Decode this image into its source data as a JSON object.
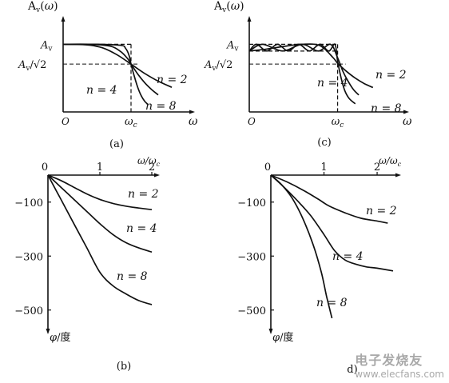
{
  "chart_data": [
    {
      "id": "a",
      "type": "line",
      "caption": "(a)",
      "ylabel": "A<sub>v</sub>(ω)",
      "xlabel": "ω",
      "origin_label": "O",
      "x_tick_label": "ω_c",
      "y_levels": [
        {
          "label": "A_v",
          "value": 1.0
        },
        {
          "label": "A_v/√2",
          "value": 0.707
        }
      ],
      "ideal_cutoff_x": 1.0,
      "xlim": [
        0,
        1.8
      ],
      "ylim": [
        0,
        1.3
      ],
      "series": [
        {
          "name": "n=2",
          "x": [
            0,
            0.2,
            0.4,
            0.6,
            0.8,
            1.0,
            1.2,
            1.4,
            1.6
          ],
          "y": [
            1.0,
            0.999,
            0.987,
            0.941,
            0.842,
            0.707,
            0.57,
            0.455,
            0.364
          ]
        },
        {
          "name": "n=4",
          "x": [
            0,
            0.4,
            0.7,
            0.85,
            0.95,
            1.0,
            1.1,
            1.2,
            1.3,
            1.4
          ],
          "y": [
            1.0,
            1.0,
            0.972,
            0.89,
            0.787,
            0.707,
            0.559,
            0.434,
            0.334,
            0.252
          ]
        },
        {
          "name": "n=8",
          "x": [
            0,
            0.5,
            0.85,
            0.92,
            0.97,
            1.0,
            1.05,
            1.1,
            1.15,
            1.2,
            1.25
          ],
          "y": [
            1.0,
            1.0,
            0.985,
            0.94,
            0.84,
            0.707,
            0.52,
            0.36,
            0.24,
            0.16,
            0.11
          ]
        }
      ],
      "annotations": [
        "n = 2",
        "n = 4",
        "n = 8"
      ]
    },
    {
      "id": "b",
      "type": "line",
      "caption": "(b)",
      "xlabel": "ω/ω_c",
      "ylabel": "φ/度",
      "xlim": [
        0,
        2
      ],
      "ylim": [
        -560,
        0
      ],
      "x_ticks": [
        0,
        1,
        2
      ],
      "y_ticks": [
        -100,
        -300,
        -500
      ],
      "x_tick_labels": [
        "0",
        "1",
        "2"
      ],
      "y_tick_labels": [
        "−100",
        "−300",
        "−500"
      ],
      "series": [
        {
          "name": "n=2",
          "x": [
            0,
            0.25,
            0.5,
            0.75,
            1.0,
            1.25,
            1.5,
            1.75,
            2.0
          ],
          "y": [
            0,
            -20,
            -45,
            -70,
            -90,
            -105,
            -115,
            -122,
            -128
          ]
        },
        {
          "name": "n=4",
          "x": [
            0,
            0.25,
            0.5,
            0.75,
            1.0,
            1.25,
            1.5,
            1.75,
            2.0
          ],
          "y": [
            0,
            -45,
            -90,
            -135,
            -180,
            -220,
            -250,
            -270,
            -285
          ]
        },
        {
          "name": "n=8",
          "x": [
            0,
            0.25,
            0.5,
            0.75,
            1.0,
            1.25,
            1.5,
            1.75,
            2.0
          ],
          "y": [
            0,
            -90,
            -180,
            -270,
            -360,
            -410,
            -440,
            -465,
            -480
          ]
        }
      ],
      "annotations": [
        "n = 2",
        "n = 4",
        "n = 8"
      ]
    },
    {
      "id": "c",
      "type": "line",
      "caption": "(c)",
      "ylabel": "A<sub>v</sub>(ω)",
      "xlabel": "ω",
      "origin_label": "O",
      "x_tick_label": "ω_c",
      "y_levels": [
        {
          "label": "A_v",
          "value": 1.0
        },
        {
          "label": "A_v/√2",
          "value": 0.707
        }
      ],
      "ripple_band": [
        0.9,
        1.0
      ],
      "ideal_cutoff_x": 1.0,
      "xlim": [
        0,
        1.7
      ],
      "ylim": [
        0,
        1.3
      ],
      "series": [
        {
          "name": "n=2",
          "x": [
            0,
            0.2,
            0.4,
            0.6,
            0.8,
            0.95,
            1.0,
            1.1,
            1.2,
            1.3,
            1.4
          ],
          "y": [
            0.9,
            0.93,
            0.97,
            1.0,
            0.98,
            0.8,
            0.72,
            0.6,
            0.5,
            0.42,
            0.36
          ]
        },
        {
          "name": "n=4",
          "x": [
            0,
            0.15,
            0.38,
            0.6,
            0.78,
            0.92,
            1.0,
            1.06,
            1.12,
            1.18,
            1.24
          ],
          "y": [
            0.9,
            1.0,
            0.9,
            1.0,
            0.9,
            1.0,
            0.8,
            0.6,
            0.45,
            0.33,
            0.25
          ]
        },
        {
          "name": "n=8",
          "x": [
            0,
            0.08,
            0.2,
            0.32,
            0.44,
            0.56,
            0.68,
            0.8,
            0.9,
            0.97,
            1.0,
            1.04,
            1.08,
            1.13,
            1.2
          ],
          "y": [
            0.9,
            1.0,
            0.9,
            1.0,
            0.9,
            1.0,
            0.9,
            1.0,
            0.9,
            1.0,
            0.75,
            0.5,
            0.32,
            0.2,
            0.12
          ]
        }
      ],
      "annotations": [
        "n = 2",
        "n = 4",
        "n = 8"
      ]
    },
    {
      "id": "d",
      "type": "line",
      "caption": "d)",
      "xlabel": "ω/ω_c",
      "ylabel": "φ/度",
      "xlim": [
        0,
        2.3
      ],
      "ylim": [
        -560,
        0
      ],
      "x_ticks": [
        0,
        1,
        2
      ],
      "y_ticks": [
        -100,
        -300,
        -500
      ],
      "x_tick_labels": [
        "0",
        "1",
        "2"
      ],
      "y_tick_labels": [
        "−100",
        "−300",
        "−500"
      ],
      "series": [
        {
          "name": "n=2",
          "x": [
            0,
            0.3,
            0.6,
            0.9,
            1.1,
            1.4,
            1.7,
            2.0,
            2.2
          ],
          "y": [
            0,
            -25,
            -55,
            -90,
            -115,
            -140,
            -160,
            -170,
            -178
          ]
        },
        {
          "name": "n=4",
          "x": [
            0,
            0.25,
            0.5,
            0.75,
            1.0,
            1.2,
            1.4,
            1.6,
            1.8,
            2.0,
            2.3
          ],
          "y": [
            0,
            -45,
            -95,
            -150,
            -220,
            -280,
            -315,
            -330,
            -340,
            -345,
            -355
          ]
        },
        {
          "name": "n=8",
          "x": [
            0,
            0.2,
            0.4,
            0.6,
            0.8,
            0.95,
            1.05,
            1.15
          ],
          "y": [
            0,
            -35,
            -85,
            -160,
            -260,
            -360,
            -450,
            -530
          ]
        }
      ],
      "annotations": [
        "n = 2",
        "n = 4",
        "n = 8"
      ]
    }
  ],
  "watermark": {
    "line1": "电子发烧友",
    "line2": "www.elecfans.com"
  }
}
